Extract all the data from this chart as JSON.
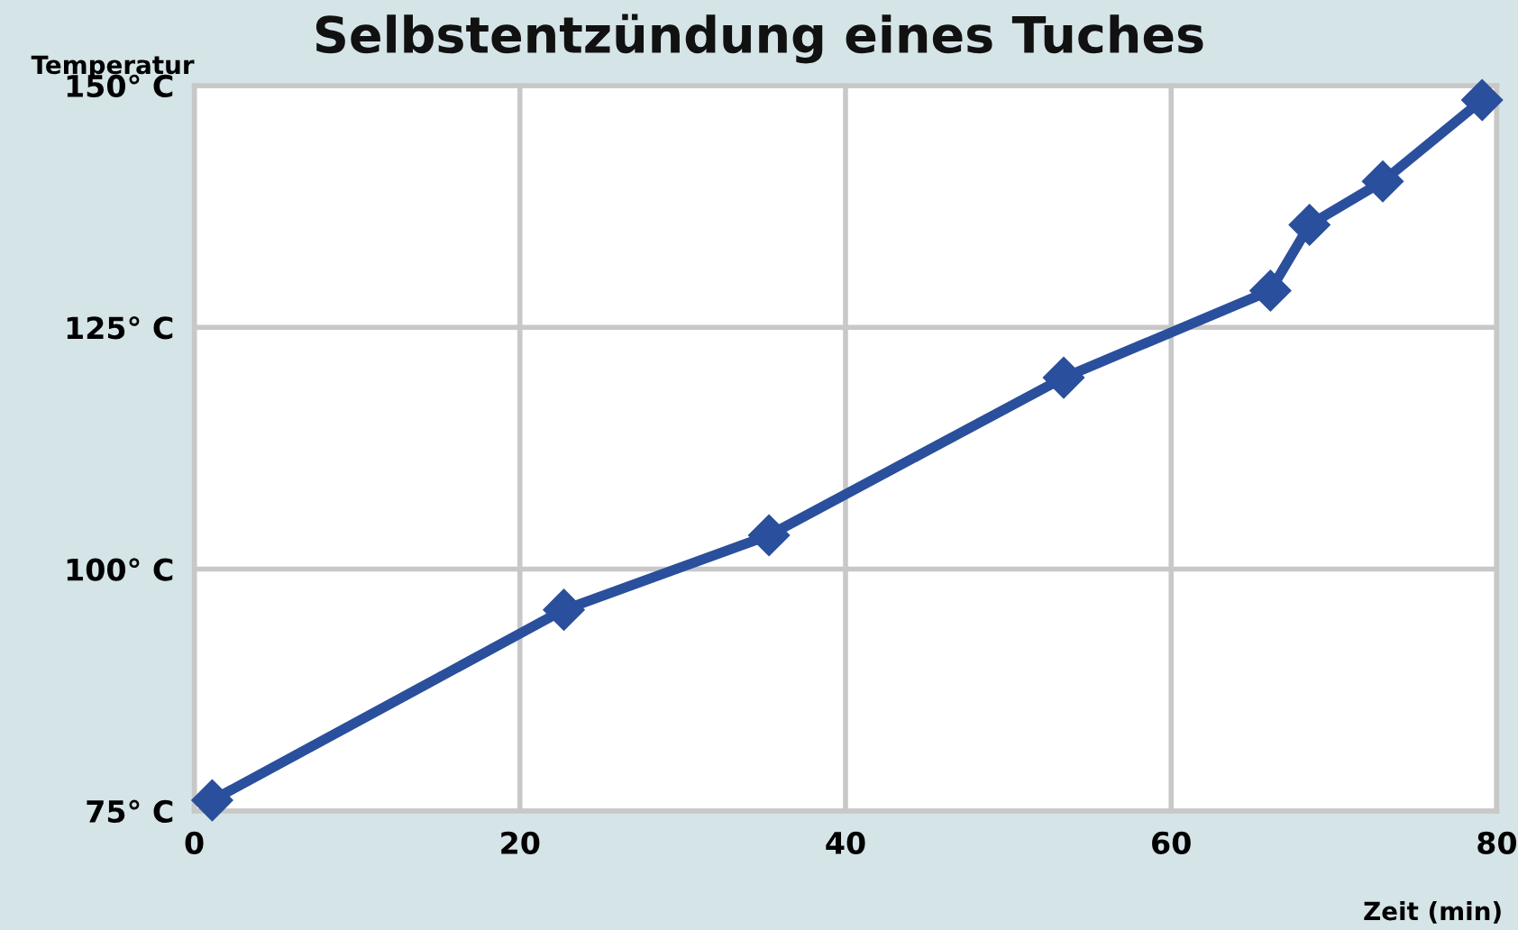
{
  "chart_data": {
    "type": "line",
    "title": "Selbstentzündung eines Tuches",
    "xlabel": "Zeit (min)",
    "ylabel": "Temperatur",
    "x": [
      1.1,
      22.7,
      35.3,
      53.4,
      66.1,
      68.5,
      73.0,
      79.1
    ],
    "series": [
      {
        "color": "#2a4f9c",
        "values": [
          76.1,
          95.8,
          103.5,
          119.8,
          128.8,
          135.6,
          140.1,
          148.5
        ]
      }
    ],
    "xlim": [
      0,
      80
    ],
    "xticks": [
      0,
      20,
      40,
      60,
      80
    ],
    "ylim": [
      75,
      150
    ],
    "yticks": [
      {
        "value": 75,
        "label": "75° C"
      },
      {
        "value": 100,
        "label": "100° C"
      },
      {
        "value": 125,
        "label": "125° C"
      },
      {
        "value": 150,
        "label": "150° C"
      }
    ],
    "grid": true,
    "marker": "diamond",
    "line_style": "solid"
  }
}
